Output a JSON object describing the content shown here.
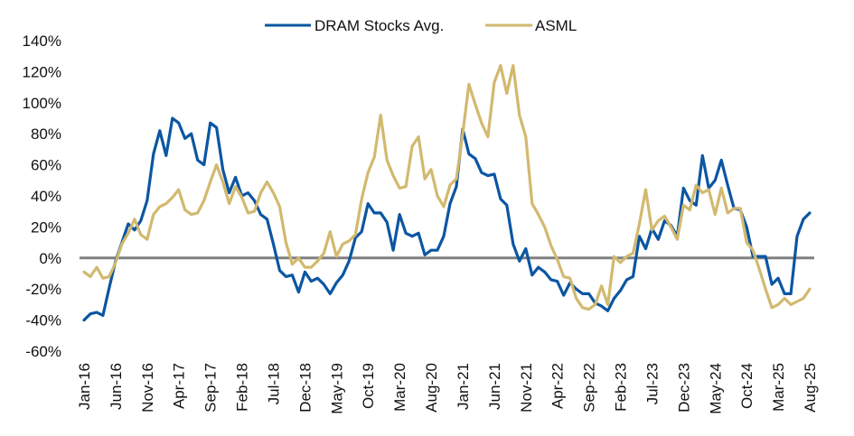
{
  "chart_data": {
    "type": "line",
    "title": "",
    "xlabel": "",
    "ylabel": "",
    "ylim": [
      -60,
      140
    ],
    "yticks": [
      140,
      120,
      100,
      80,
      60,
      40,
      20,
      0,
      -20,
      -40,
      -60
    ],
    "ytick_labels": [
      "140%",
      "120%",
      "100%",
      "80%",
      "60%",
      "40%",
      "20%",
      "0%",
      "-20%",
      "-40%",
      "-60%"
    ],
    "x_start": "Jan-16",
    "x_end": "Aug-25",
    "x_frequency": "monthly",
    "xtick_labels": [
      "Jan-16",
      "Jun-16",
      "Nov-16",
      "Apr-17",
      "Sep-17",
      "Feb-18",
      "Jul-18",
      "Dec-18",
      "May-19",
      "Oct-19",
      "Mar-20",
      "Aug-20",
      "Jan-21",
      "Jun-21",
      "Nov-21",
      "Apr-22",
      "Sep-22",
      "Feb-23",
      "Jul-23",
      "Dec-23",
      "May-24",
      "Oct-24",
      "Mar-25",
      "Aug-25"
    ],
    "xtick_every_months": 5,
    "grid": false,
    "zero_line": true,
    "legend": {
      "position": "top-center"
    },
    "series": [
      {
        "name": "DRAM Stocks Avg.",
        "color": "#0b56a2",
        "values": [
          -40,
          -36,
          -35,
          -37,
          -19,
          -2,
          10,
          22,
          18,
          24,
          37,
          67,
          82,
          66,
          90,
          87,
          77,
          80,
          63,
          60,
          87,
          84,
          57,
          42,
          52,
          40,
          42,
          37,
          28,
          25,
          9,
          -8,
          -12,
          -11,
          -22,
          -9,
          -15,
          -13,
          -17,
          -23,
          -16,
          -11,
          -2,
          13,
          17,
          35,
          29,
          29,
          23,
          5,
          28,
          16,
          14,
          16,
          2,
          5,
          5,
          14,
          35,
          46,
          83,
          67,
          64,
          55,
          53,
          54,
          38,
          34,
          9,
          -2,
          6,
          -11,
          -6,
          -9,
          -14,
          -15,
          -24,
          -16,
          -20,
          -23,
          -23,
          -29,
          -31,
          -34,
          -26,
          -21,
          -14,
          -12,
          14,
          6,
          19,
          12,
          24,
          21,
          14,
          45,
          37,
          34,
          66,
          45,
          50,
          63,
          47,
          32,
          31,
          20,
          1,
          1,
          1,
          -17,
          -13,
          -23,
          -23,
          14,
          25,
          29
        ]
      },
      {
        "name": "ASML",
        "color": "#d2b96f",
        "values": [
          -9,
          -12,
          -6,
          -13,
          -12,
          -3,
          9,
          16,
          25,
          15,
          12,
          28,
          33,
          35,
          39,
          44,
          31,
          28,
          29,
          37,
          49,
          60,
          49,
          35,
          46,
          39,
          29,
          30,
          42,
          49,
          42,
          33,
          10,
          -4,
          0,
          -6,
          -6,
          -2,
          3,
          17,
          1,
          9,
          11,
          15,
          38,
          55,
          65,
          92,
          63,
          53,
          45,
          46,
          72,
          78,
          51,
          57,
          40,
          33,
          47,
          51,
          80,
          112,
          99,
          87,
          78,
          113,
          124,
          106,
          124,
          92,
          78,
          35,
          28,
          20,
          8,
          -1,
          -12,
          -13,
          -26,
          -32,
          -33,
          -30,
          -18,
          -30,
          1,
          -3,
          1,
          3,
          22,
          44,
          18,
          24,
          27,
          20,
          12,
          34,
          31,
          47,
          42,
          44,
          28,
          45,
          29,
          32,
          32,
          10,
          5,
          -7,
          -20,
          -32,
          -30,
          -26,
          -30,
          -28,
          -26,
          -20
        ]
      }
    ]
  }
}
